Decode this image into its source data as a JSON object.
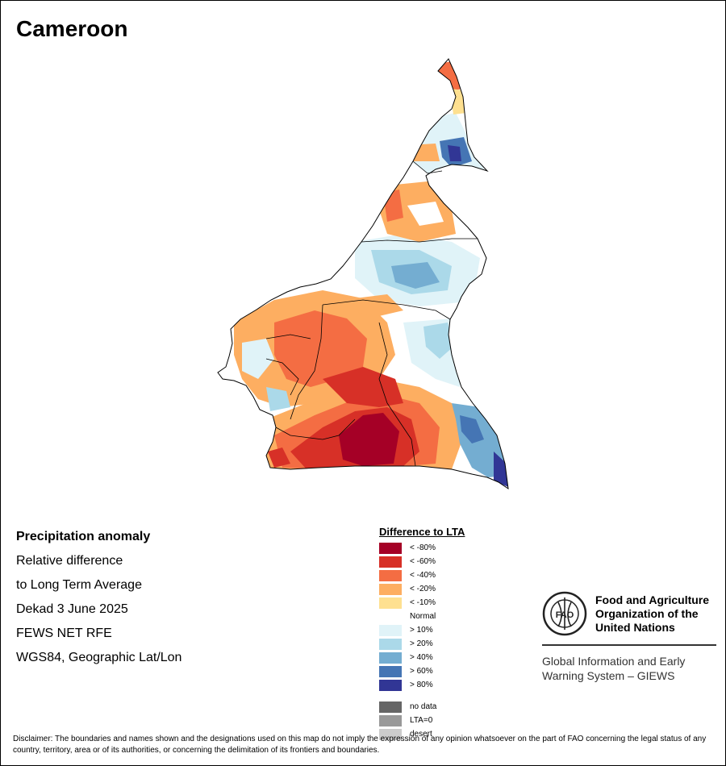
{
  "title": "Cameroon",
  "info": {
    "line1": "Precipitation anomaly",
    "line2": "Relative difference",
    "line3": "to Long Term Average",
    "line4": "Dekad 3 June 2025",
    "line5": "FEWS NET RFE",
    "line6": "WGS84, Geographic Lat/Lon"
  },
  "legend": {
    "title": "Difference to LTA",
    "items": [
      {
        "label": "< -80%",
        "color": "#a50026"
      },
      {
        "label": "< -60%",
        "color": "#d73027"
      },
      {
        "label": "< -40%",
        "color": "#f46d43"
      },
      {
        "label": "< -20%",
        "color": "#fdae61"
      },
      {
        "label": "< -10%",
        "color": "#fee090"
      },
      {
        "label": "Normal",
        "color": "#ffffff"
      },
      {
        "label": "> 10%",
        "color": "#e0f3f8"
      },
      {
        "label": "> 20%",
        "color": "#abd9e9"
      },
      {
        "label": "> 40%",
        "color": "#74add1"
      },
      {
        "label": "> 60%",
        "color": "#4575b4"
      },
      {
        "label": "> 80%",
        "color": "#313695"
      }
    ],
    "extra": [
      {
        "label": "no data",
        "color": "#666666"
      },
      {
        "label": "LTA=0",
        "color": "#999999"
      },
      {
        "label": "desert",
        "color": "#cccccc"
      }
    ]
  },
  "fao": {
    "logo_text": "FAO",
    "name": "Food and Agriculture Organization of the United Nations",
    "name_line1": "Food and Agriculture",
    "name_line2": "Organization of the",
    "name_line3": "United Nations",
    "sub_line1": "Global Information and Early",
    "sub_line2": "Warning System – GIEWS"
  },
  "disclaimer": "Disclaimer: The boundaries and names shown and the designations used on this map do not imply the expression of any opinion whatsoever on the part of FAO concerning the legal status of any country, territory, area or of its authorities, or concerning the delimitation of its frontiers and boundaries."
}
